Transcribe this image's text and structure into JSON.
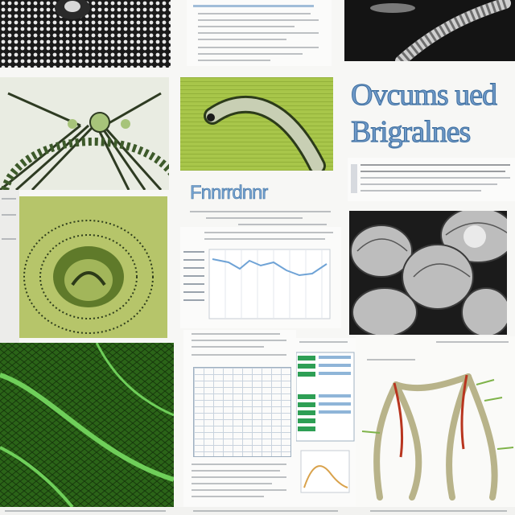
{
  "title_art": {
    "line1": "Ovcums ued",
    "line2": "Brigralnes"
  },
  "small_heading": "Fnnrrdnnr",
  "colors": {
    "green_panel": "#a8c64a",
    "leaf_dark": "#1f4d12",
    "leaf_vein": "#6fcf5a",
    "title_blue": "#6f99c8",
    "chart_line": "#6fa3d6",
    "table_green": "#2e9f55",
    "root_red": "#b8351f"
  },
  "icons": [
    "spotted-texture",
    "serpent-creature",
    "radial-organism",
    "leaf-veins",
    "bulbous-spheres",
    "root-system"
  ]
}
